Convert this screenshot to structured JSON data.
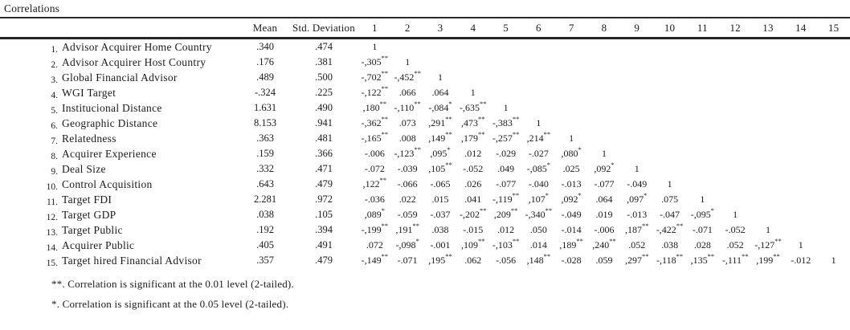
{
  "title": "Correlations",
  "table": {
    "header": {
      "mean": "Mean",
      "std": "Std. Deviation",
      "numbers": [
        "1",
        "2",
        "3",
        "4",
        "5",
        "6",
        "7",
        "8",
        "9",
        "10",
        "11",
        "12",
        "13",
        "14",
        "15"
      ]
    },
    "rows": [
      {
        "num": "1.",
        "label": "Advisor Acquirer Home Country",
        "mean": ".340",
        "std": ".474",
        "cells": [
          "1"
        ]
      },
      {
        "num": "2.",
        "label": "Advisor Acquirer Host Country",
        "mean": ".176",
        "std": ".381",
        "cells": [
          "-,305**",
          "1"
        ]
      },
      {
        "num": "3.",
        "label": "Global Financial Advisor",
        "mean": ".489",
        "std": ".500",
        "cells": [
          "-,702**",
          "-,452**",
          "1"
        ]
      },
      {
        "num": "4.",
        "label": "WGI Target",
        "mean": "-.324",
        "std": ".225",
        "cells": [
          "-,122**",
          ".066",
          ".064",
          "1"
        ]
      },
      {
        "num": "5.",
        "label": "Institucional Distance",
        "mean": "1.631",
        "std": ".490",
        "cells": [
          ",180**",
          "-,110**",
          "-,084*",
          "-,635**",
          "1"
        ]
      },
      {
        "num": "6.",
        "label": "Geographic Distance",
        "mean": "8.153",
        "std": ".941",
        "cells": [
          "-,362**",
          ".073",
          ",291**",
          ",473**",
          "-,383**",
          "1"
        ]
      },
      {
        "num": "7.",
        "label": "Relatedness",
        "mean": ".363",
        "std": ".481",
        "cells": [
          "-,165**",
          ".008",
          ",149**",
          ",179**",
          "-,257**",
          ",214**",
          "1"
        ]
      },
      {
        "num": "8.",
        "label": "Acquirer Experience",
        "mean": ".159",
        "std": ".366",
        "cells": [
          "-.006",
          "-,123**",
          ",095*",
          ".012",
          "-.029",
          "-.027",
          ",080*",
          "1"
        ]
      },
      {
        "num": "9.",
        "label": "Deal Size",
        "mean": ".332",
        "std": ".471",
        "cells": [
          "-.072",
          "-.039",
          ",105**",
          "-.052",
          ".049",
          "-,085*",
          ".025",
          ",092*",
          "1"
        ]
      },
      {
        "num": "10.",
        "label": "Control Acquisition",
        "mean": ".643",
        "std": ".479",
        "cells": [
          ",122**",
          "-.066",
          "-.065",
          ".026",
          "-.077",
          "-.040",
          "-.013",
          "-.077",
          "-.049",
          "1"
        ]
      },
      {
        "num": "11.",
        "label": "Target FDI",
        "mean": "2.281",
        "std": ".972",
        "cells": [
          "-.036",
          ".022",
          ".015",
          ".041",
          "-,119**",
          ",107*",
          ",092*",
          ".064",
          ",097*",
          ".075",
          "1"
        ]
      },
      {
        "num": "12.",
        "label": "Target GDP",
        "mean": ".038",
        "std": ".105",
        "cells": [
          ",089*",
          "-.059",
          "-.037",
          "-,202**",
          ",209**",
          "-,340**",
          "-.049",
          ".019",
          "-.013",
          "-.047",
          "-,095*",
          "1"
        ]
      },
      {
        "num": "13.",
        "label": "Target Public",
        "mean": ".192",
        "std": ".394",
        "cells": [
          "-,199**",
          ",191**",
          ".038",
          "-.015",
          ".012",
          ".050",
          "-.014",
          "-.006",
          ",187**",
          "-,422**",
          "-.071",
          "-.052",
          "1"
        ]
      },
      {
        "num": "14.",
        "label": "Acquirer Public",
        "mean": ".405",
        "std": ".491",
        "cells": [
          ".072",
          "-,098*",
          "-.001",
          ",109**",
          "-,103**",
          ".014",
          ",189**",
          ",240**",
          ".052",
          ".038",
          ".028",
          ".052",
          "-,127**",
          "1"
        ]
      },
      {
        "num": "15.",
        "label": "Target hired Financial Advisor",
        "mean": ".357",
        "std": ".479",
        "cells": [
          "-,149**",
          "-.071",
          ",195**",
          ".062",
          "-.056",
          ",148**",
          "-.028",
          ".059",
          ",297**",
          "-,118**",
          ",135**",
          "-,111**",
          ",199**",
          "-.012",
          "1"
        ]
      }
    ]
  },
  "footnotes": [
    "**. Correlation is significant at the 0.01 level (2-tailed).",
    "*. Correlation is significant at the 0.05 level (2-tailed)."
  ]
}
